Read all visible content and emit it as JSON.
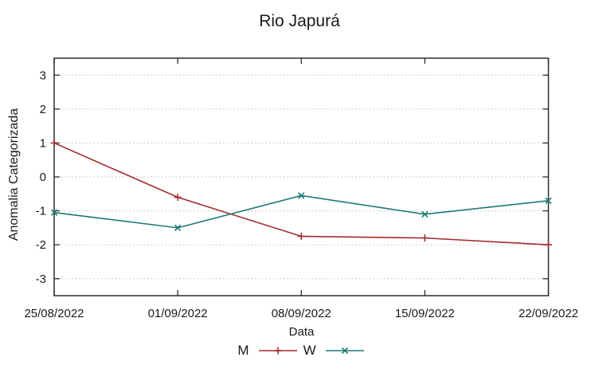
{
  "title": "Rio Japurá",
  "chart_data": {
    "type": "line",
    "title": "Rio Japurá",
    "xlabel": "Data",
    "ylabel": "Anomalia Categorizada",
    "categories": [
      "25/08/2022",
      "01/09/2022",
      "08/09/2022",
      "15/09/2022",
      "22/09/2022"
    ],
    "series": [
      {
        "name": "M",
        "color": "#a32c2c",
        "marker": "plus",
        "values": [
          1.0,
          -0.6,
          -1.75,
          -1.8,
          -2.0
        ]
      },
      {
        "name": "W",
        "color": "#1f7874",
        "marker": "cross",
        "values": [
          -1.05,
          -1.5,
          -0.55,
          -1.1,
          -0.7
        ]
      }
    ],
    "ylim": [
      -3.5,
      3.5
    ],
    "yticks": [
      -3,
      -2,
      -1,
      0,
      1,
      2,
      3
    ],
    "grid": true,
    "grid_style": "dotted",
    "grid_color": "#bdbdbd",
    "axis_color": "#2e2e2e",
    "text_color": "#1a1a1a",
    "legend_position": "bottom-center"
  }
}
